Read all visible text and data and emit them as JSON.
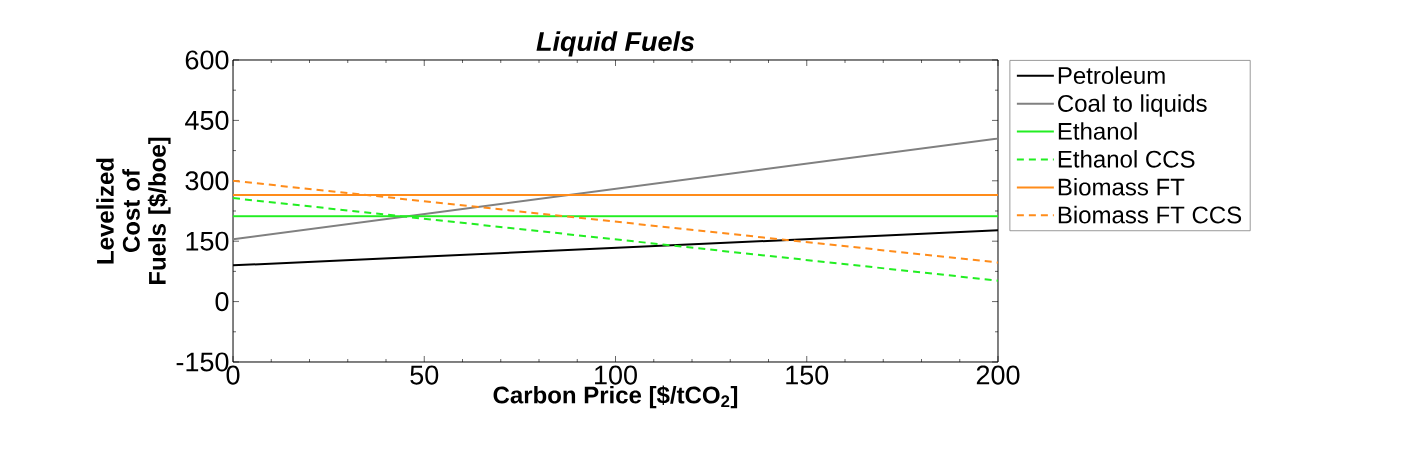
{
  "chart_data": {
    "type": "line",
    "title": "Liquid Fuels",
    "xlabel": "Carbon Price [$/tCO$_{2}$]",
    "ylabel": "Levelized Cost of Fuels [$/boe]",
    "x": [
      0,
      200
    ],
    "series": [
      {
        "name": "Petroleum",
        "color": "#000000",
        "values": [
          90,
          177
        ]
      },
      {
        "name": "Coal to liquids",
        "color": "#808080",
        "values": [
          155,
          405
        ]
      },
      {
        "name": "Ethanol",
        "color": "#22ee22",
        "values": [
          212,
          212
        ]
      },
      {
        "name": "Ethanol CCS",
        "color": "#22ee22",
        "values": [
          257,
          52
        ],
        "line_style": "dashed"
      },
      {
        "name": "Biomass FT",
        "color": "#ff8c1a",
        "values": [
          265,
          265
        ]
      },
      {
        "name": "Biomass FT CCS",
        "color": "#ff8c1a",
        "values": [
          300,
          97
        ],
        "line_style": "dashed"
      }
    ],
    "xlim": [
      0,
      200
    ],
    "ylim": [
      -150,
      600
    ],
    "xticks": [
      0,
      50,
      100,
      150,
      200
    ],
    "yticks": [
      -150,
      0,
      150,
      300,
      450,
      600
    ],
    "grid": false,
    "legend": "right",
    "marker": "none",
    "line_style": "solid"
  }
}
